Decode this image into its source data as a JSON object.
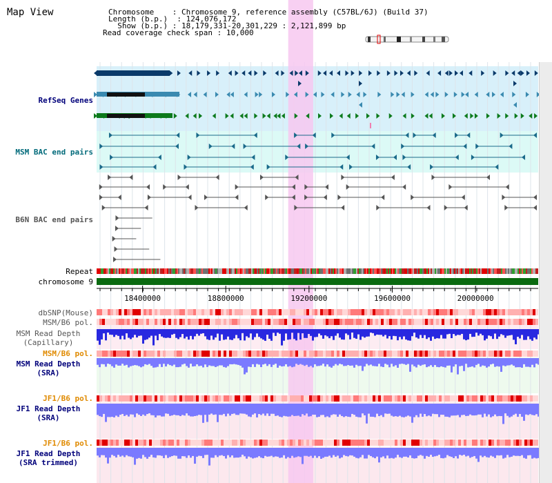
{
  "header": {
    "title": "Map View",
    "chromosome_label": "Chromosome",
    "chromosome_value": "Chromosome 9, reference assembly (C57BL/6J) (Build 37)",
    "length_label": "Length (b.p.)",
    "length_value": "124,076,172",
    "show_label": "Show (b.p.)",
    "show_value": "18,179,331-20,301,229 : 2,121,899 bp",
    "span_label": "Read coverage check span",
    "span_value": "10,000"
  },
  "tracks": {
    "refseq": "RefSeq Genes",
    "msm_bac": "MSM BAC end pairs",
    "b6n_bac": "B6N BAC end pairs",
    "repeat": "Repeat",
    "chromosome": "chromosome 9",
    "dbsnp": "dbSNP(Mouse)",
    "msm_pol_1": "MSM/B6 pol.",
    "msm_depth_cap_1": "MSM Read Depth",
    "msm_depth_cap_2": "(Capillary)",
    "msm_pol_2": "MSM/B6 pol.",
    "msm_depth_sra_1": "MSM Read Depth",
    "msm_depth_sra_2": "(SRA)",
    "jf1_pol_1": "JF1/B6 pol.",
    "jf1_depth_sra_1": "JF1 Read Depth",
    "jf1_depth_sra_2": "(SRA)",
    "jf1_pol_2": "JF1/B6 pol.",
    "jf1_depth_trim_1": "JF1 Read Depth",
    "jf1_depth_trim_2": "(SRA trimmed)"
  },
  "axis": {
    "ticks": [
      "18400000",
      "18800000",
      "19200000",
      "19600000",
      "20000000"
    ],
    "tick_values": [
      18400000,
      18800000,
      19200000,
      19600000,
      20000000
    ],
    "range": [
      18179331,
      20301229
    ]
  },
  "highlight": {
    "start": 19100000,
    "end": 19220000,
    "color": "#f7c8f0"
  },
  "colors": {
    "refseq_bg": "#d8f0fa",
    "bac_bg": "#dcfaf6",
    "msm_band": "#fdecf2",
    "sra_band": "#eefaee",
    "pink_band": "#fce8ee",
    "gene_navy": "#0a3a6a",
    "gene_teal": "#3a8ab0",
    "gene_green": "#0c7a1c",
    "bac_teal": "#1a6a8a",
    "bac_gray": "#555555",
    "chrom_green": "#0a6a10",
    "depth_blue": "#2828e0",
    "depth_lav": "#7a7aff",
    "label_navy": "#00007a",
    "label_teal": "#006a7a",
    "label_gray": "#555555",
    "label_orange": "#e08a00"
  }
}
